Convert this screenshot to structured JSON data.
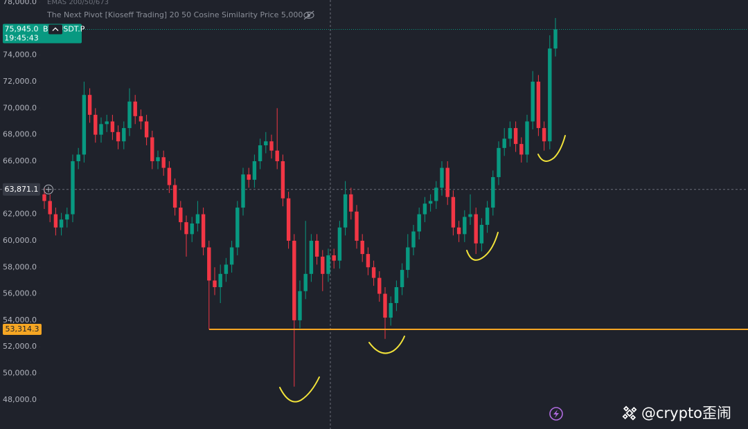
{
  "chart_data": {
    "type": "candlestick",
    "indicator_top": "EMAS 200/50/673",
    "indicator": "The Next Pivot [Kioseff Trading] 20 50 Cosine Similarity Price 5,000 1",
    "symbol": "BTCUSDT.P",
    "countdown": "19:45:43",
    "watermark": "@crypto歪闹",
    "up_color": "#089981",
    "down_color": "#f23645",
    "ylim": [
      45800,
      78160
    ],
    "yticks": [
      {
        "value": 48000,
        "label": "48,000.0"
      },
      {
        "value": 50000,
        "label": "50,000.0"
      },
      {
        "value": 52000,
        "label": "52,000.0"
      },
      {
        "value": 54000,
        "label": "54,000.0"
      },
      {
        "value": 56000,
        "label": "56,000.0"
      },
      {
        "value": 58000,
        "label": "58,000.0"
      },
      {
        "value": 60000,
        "label": "60,000.0"
      },
      {
        "value": 62000,
        "label": "62,000.0"
      },
      {
        "value": 66000,
        "label": "66,000.0"
      },
      {
        "value": 68000,
        "label": "68,000.0"
      },
      {
        "value": 70000,
        "label": "70,000.0"
      },
      {
        "value": 72000,
        "label": "72,000.0"
      },
      {
        "value": 74000,
        "label": "74,000.0"
      },
      {
        "value": 78000,
        "label": "78,000.0"
      }
    ],
    "last_price": {
      "value": 75945,
      "label": "75,945.0"
    },
    "crosshair": {
      "value": 63871.1,
      "label": "63,871.1"
    },
    "support": {
      "value": 53314.3,
      "label": "53,314.3",
      "color": "#f5a623"
    },
    "open": [
      63500,
      63000,
      62000,
      61000,
      61600,
      62000,
      66000,
      66500,
      71000,
      69500,
      68000,
      68800,
      69000,
      68200,
      67500,
      68500,
      70500,
      69400,
      69000,
      67800,
      66000,
      66300,
      65500,
      64200,
      62500,
      61400,
      60500,
      61300,
      62000,
      59500,
      57000,
      56500,
      57500,
      58200,
      59500,
      62500,
      65000,
      64600,
      66000,
      67200,
      67500,
      66800,
      66000,
      63200,
      60000,
      54000,
      56200,
      57500,
      60000,
      58800,
      57500,
      58900,
      58500,
      61000,
      63500,
      62200,
      60000,
      59000,
      58000,
      57200,
      56000,
      54200,
      55300,
      56500,
      57800,
      59500,
      60700,
      62000,
      62800,
      63000,
      64000,
      65500,
      63300,
      61000,
      60500,
      61800,
      62000,
      59800,
      61200,
      62500,
      64800,
      67000,
      67700,
      68500,
      67300,
      66500,
      69000,
      72000,
      68500,
      67500,
      74500
    ],
    "high": [
      64000,
      63500,
      62500,
      62100,
      62500,
      66500,
      67000,
      72000,
      71500,
      70000,
      69300,
      69500,
      69500,
      68700,
      69000,
      71500,
      71000,
      69900,
      69500,
      68300,
      66800,
      66800,
      66000,
      64700,
      63000,
      61900,
      61800,
      63000,
      62500,
      60000,
      58000,
      58200,
      58700,
      60000,
      63000,
      65500,
      65500,
      66500,
      67700,
      68200,
      68000,
      70000,
      66500,
      63700,
      60500,
      57000,
      61500,
      60500,
      60500,
      59300,
      59400,
      59400,
      61500,
      64500,
      64000,
      62700,
      60500,
      59500,
      58500,
      57700,
      56500,
      55800,
      57000,
      58300,
      60500,
      61200,
      62500,
      63300,
      63500,
      64500,
      66000,
      66000,
      63800,
      61500,
      62300,
      63500,
      62500,
      61700,
      63000,
      65300,
      67500,
      68500,
      69000,
      69000,
      67800,
      69500,
      72800,
      72500,
      69000,
      75500,
      76800
    ],
    "low": [
      62400,
      61400,
      60400,
      60400,
      61000,
      61400,
      65400,
      65900,
      68900,
      67400,
      67400,
      68200,
      67600,
      66900,
      66900,
      67900,
      68800,
      68400,
      67200,
      65400,
      65400,
      64900,
      63600,
      61900,
      60800,
      58800,
      59900,
      60700,
      58900,
      53300,
      55900,
      55300,
      56900,
      57600,
      58900,
      61900,
      64000,
      64000,
      65400,
      66600,
      66200,
      65400,
      62600,
      59400,
      49000,
      53400,
      55600,
      56900,
      58200,
      56200,
      56900,
      57900,
      57900,
      60400,
      61600,
      59400,
      58400,
      57400,
      56600,
      55400,
      52600,
      53600,
      54700,
      55900,
      57200,
      58900,
      60100,
      61400,
      62200,
      62400,
      63400,
      62700,
      60400,
      59900,
      59900,
      61200,
      59000,
      59200,
      60600,
      61900,
      64200,
      66400,
      67100,
      66700,
      65900,
      65900,
      68400,
      67900,
      66800,
      66900,
      73900
    ],
    "close": [
      63000,
      62000,
      61000,
      61600,
      62000,
      66000,
      66500,
      71000,
      69500,
      68000,
      68800,
      69000,
      68200,
      67500,
      68500,
      70500,
      69400,
      69000,
      67800,
      66000,
      66300,
      65500,
      64200,
      62500,
      61400,
      60500,
      61300,
      62000,
      59500,
      57000,
      56500,
      57500,
      58200,
      59500,
      62500,
      65000,
      64600,
      66000,
      67200,
      67500,
      66800,
      66000,
      63200,
      60000,
      54000,
      56200,
      57500,
      60000,
      58800,
      57500,
      58900,
      58500,
      61000,
      63500,
      62200,
      60000,
      59000,
      58000,
      57200,
      56000,
      54200,
      55300,
      56500,
      57800,
      59500,
      60700,
      62000,
      62800,
      63000,
      64000,
      65500,
      63300,
      61000,
      60500,
      61800,
      62000,
      59800,
      61200,
      62500,
      64800,
      67000,
      67700,
      68500,
      67300,
      66500,
      69000,
      72000,
      68500,
      67500,
      74500,
      75945
    ]
  }
}
